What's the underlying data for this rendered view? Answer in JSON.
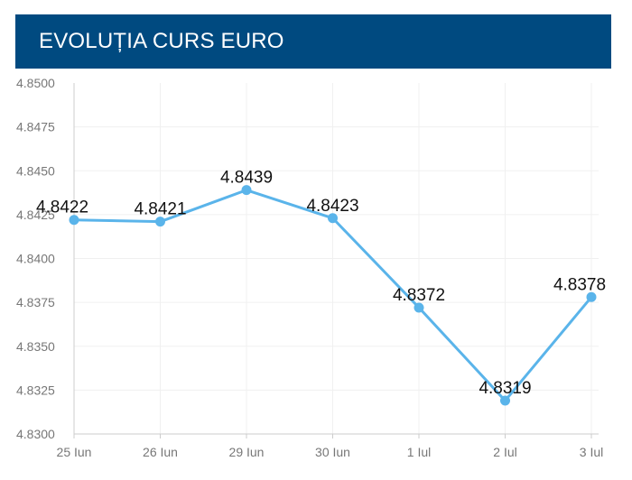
{
  "header": {
    "title": "EVOLUȚIA CURS EURO"
  },
  "chart_data": {
    "type": "line",
    "title": "EVOLUȚIA CURS EURO",
    "xlabel": "",
    "ylabel": "",
    "categories": [
      "25 Iun",
      "26 Iun",
      "29 Iun",
      "30 Iun",
      "1 Iul",
      "2 Iul",
      "3 Iul"
    ],
    "values": [
      4.8422,
      4.8421,
      4.8439,
      4.8423,
      4.8372,
      4.8319,
      4.8378
    ],
    "data_labels": [
      "4.8422",
      "4.8421",
      "4.8439",
      "4.8423",
      "4.8372",
      "4.8319",
      "4.8378"
    ],
    "yticks": [
      "4.8500",
      "4.8475",
      "4.8450",
      "4.8425",
      "4.8400",
      "4.8375",
      "4.8350",
      "4.8325",
      "4.8300"
    ],
    "ylim": [
      4.83,
      4.85
    ],
    "grid": true,
    "line_color": "#5ab4ea",
    "header_color": "#004a80"
  }
}
